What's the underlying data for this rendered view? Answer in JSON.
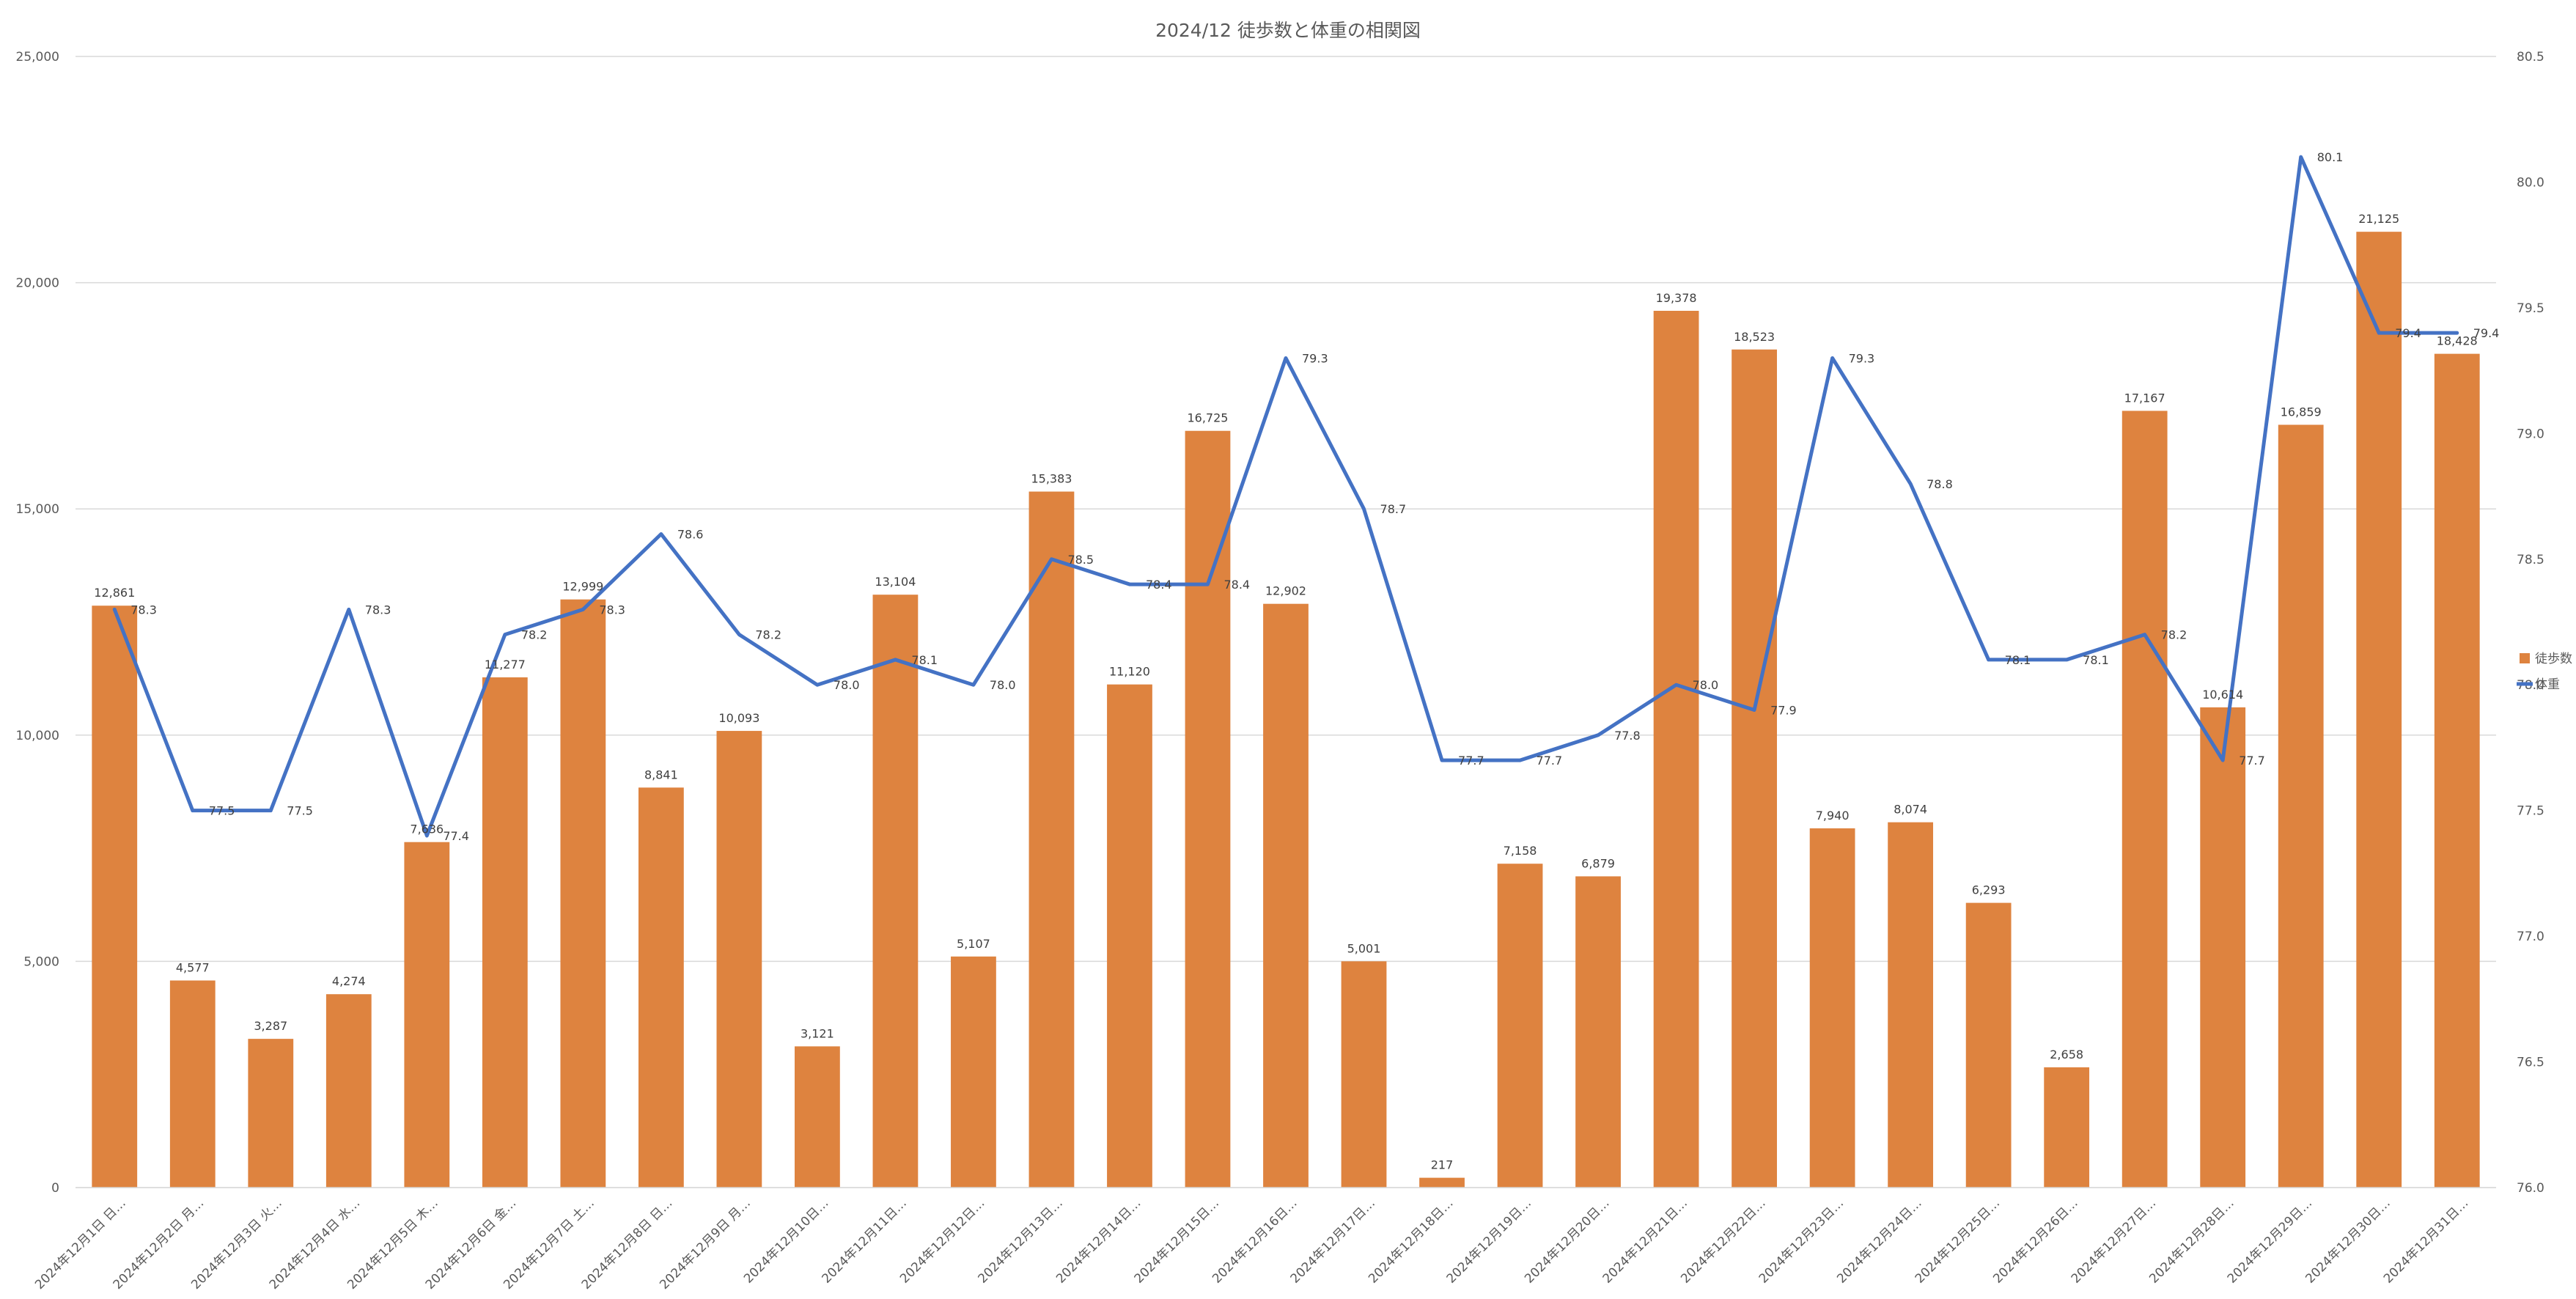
{
  "chart_data": {
    "type": "bar",
    "title": "2024/12 徒歩数と体重の相関図",
    "categories": [
      "2024年12月1日 日…",
      "2024年12月2日 月…",
      "2024年12月3日 火…",
      "2024年12月4日 水…",
      "2024年12月5日 木…",
      "2024年12月6日 金…",
      "2024年12月7日 土…",
      "2024年12月8日 日…",
      "2024年12月9日 月…",
      "2024年12月10日…",
      "2024年12月11日…",
      "2024年12月12日…",
      "2024年12月13日…",
      "2024年12月14日…",
      "2024年12月15日…",
      "2024年12月16日…",
      "2024年12月17日…",
      "2024年12月18日…",
      "2024年12月19日…",
      "2024年12月20日…",
      "2024年12月21日…",
      "2024年12月22日…",
      "2024年12月23日…",
      "2024年12月24日…",
      "2024年12月25日…",
      "2024年12月26日…",
      "2024年12月27日…",
      "2024年12月28日…",
      "2024年12月29日…",
      "2024年12月30日…",
      "2024年12月31日…"
    ],
    "series": [
      {
        "name": "徒歩数",
        "type": "bar",
        "axis": "left",
        "color": "#DE833F",
        "values": [
          12861,
          4577,
          3287,
          4274,
          7636,
          11277,
          12999,
          8841,
          10093,
          3121,
          13104,
          5107,
          15383,
          11120,
          16725,
          12902,
          5001,
          217,
          7158,
          6879,
          19378,
          18523,
          7940,
          8074,
          6293,
          2658,
          17167,
          10614,
          16859,
          21125,
          18428
        ],
        "labels": [
          "12,861",
          "4,577",
          "3,287",
          "4,274",
          "7,636",
          "11,277",
          "12,999",
          "8,841",
          "10,093",
          "3,121",
          "13,104",
          "5,107",
          "15,383",
          "11,120",
          "16,725",
          "12,902",
          "5,001",
          "217",
          "7,158",
          "6,879",
          "19,378",
          "18,523",
          "7,940",
          "8,074",
          "6,293",
          "2,658",
          "17,167",
          "10,614",
          "16,859",
          "21,125",
          "18,428"
        ]
      },
      {
        "name": "体重",
        "type": "line",
        "axis": "right",
        "color": "#4472C4",
        "values": [
          78.3,
          77.5,
          77.5,
          78.3,
          77.4,
          78.2,
          78.3,
          78.6,
          78.2,
          78.0,
          78.1,
          78.0,
          78.5,
          78.4,
          78.4,
          79.3,
          78.7,
          77.7,
          77.7,
          77.8,
          78.0,
          77.9,
          79.3,
          78.8,
          78.1,
          78.1,
          78.2,
          77.7,
          80.1,
          79.4,
          79.4
        ],
        "labels": [
          "78.3",
          "77.5",
          "77.5",
          "78.3",
          "77.4",
          "78.2",
          "78.3",
          "78.6",
          "78.2",
          "78.0",
          "78.1",
          "78.0",
          "78.5",
          "78.4",
          "78.4",
          "79.3",
          "78.7",
          "77.7",
          "77.7",
          "77.8",
          "78.0",
          "77.9",
          "79.3",
          "78.8",
          "78.1",
          "78.1",
          "78.2",
          "77.7",
          "80.1",
          "79.4",
          "79.4"
        ]
      }
    ],
    "y_left": {
      "range": [
        0,
        25000
      ],
      "ticks": [
        0,
        5000,
        10000,
        15000,
        20000,
        25000
      ],
      "tick_labels": [
        "0",
        "5,000",
        "10,000",
        "15,000",
        "20,000",
        "25,000"
      ]
    },
    "y_right": {
      "range": [
        76.0,
        80.5
      ],
      "ticks": [
        76.0,
        76.5,
        77.0,
        77.5,
        78.0,
        78.5,
        79.0,
        79.5,
        80.0,
        80.5
      ],
      "tick_labels": [
        "76.0",
        "76.5",
        "77.0",
        "77.5",
        "78.0",
        "78.5",
        "79.0",
        "79.5",
        "80.0",
        "80.5"
      ]
    },
    "grid": true,
    "legend": "right",
    "colors": {
      "grid": "#D9D9D9",
      "text": "#595959",
      "label": "#404040",
      "title": "#595959"
    }
  }
}
